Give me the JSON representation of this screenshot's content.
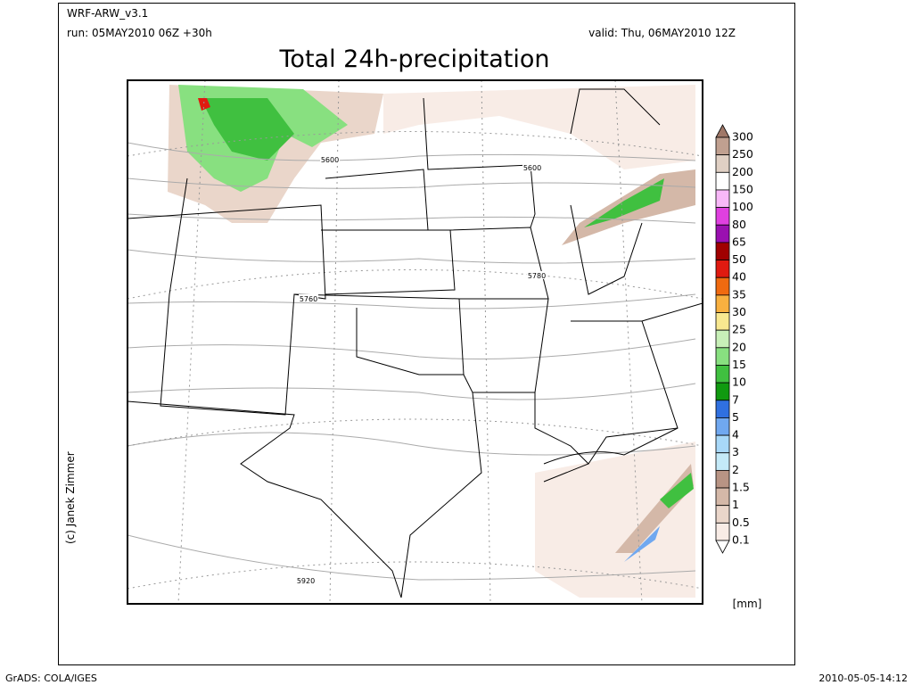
{
  "header": {
    "model": "WRF-ARW_v3.1",
    "run": "run: 05MAY2010 06Z +30h",
    "valid": "valid: Thu, 06MAY2010 12Z",
    "title": "Total 24h-precipitation"
  },
  "map": {
    "contour_labels": [
      "5600",
      "5600",
      "5780",
      "5760",
      "5920"
    ]
  },
  "colorbar": {
    "labels": [
      "300",
      "250",
      "200",
      "150",
      "100",
      "80",
      "65",
      "50",
      "40",
      "35",
      "30",
      "25",
      "20",
      "15",
      "10",
      "7",
      "5",
      "4",
      "3",
      "2",
      "1.5",
      "1",
      "0.5",
      "0.1"
    ],
    "colors": [
      "#a07868",
      "#c0a090",
      "#e0d0c4",
      "#ffffff",
      "#f8b8f8",
      "#e040e0",
      "#9a10b0",
      "#a00000",
      "#e01a10",
      "#f06a10",
      "#f8b040",
      "#f8e890",
      "#c8f0b8",
      "#88e080",
      "#40c040",
      "#109a10",
      "#3070e0",
      "#70a8f0",
      "#a8d8f8",
      "#c4eaf8",
      "#b89484",
      "#d4b8a8",
      "#ead6ca",
      "#f8ece6",
      "#ffffff"
    ],
    "unit": "[mm]"
  },
  "footer": {
    "author": "(c) Janek Zimmer",
    "left": "GrADS: COLA/IGES",
    "right": "2010-05-05-14:12"
  }
}
